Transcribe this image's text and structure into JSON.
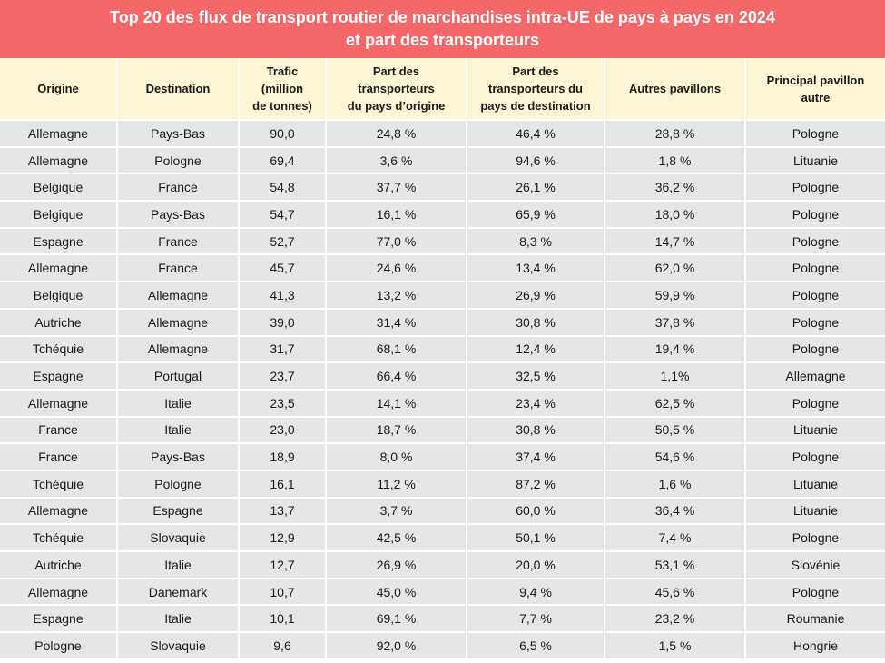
{
  "title": {
    "line1": "Top 20 des flux de transport routier de marchandises intra-UE de pays à pays en 2024",
    "line2": "et part des transporteurs"
  },
  "headers": {
    "origine": "Origine",
    "destination": "Destination",
    "trafic_l1": "Trafic",
    "trafic_l2": "(million",
    "trafic_l3": "de tonnes)",
    "part_origine_l1": "Part des",
    "part_origine_l2": "transporteurs",
    "part_origine_l3": "du pays d’origine",
    "part_dest_l1": "Part des",
    "part_dest_l2": "transporteurs du",
    "part_dest_l3": "pays de destination",
    "autres": "Autres pavillons",
    "principal_l1": "Principal pavillon",
    "principal_l2": "autre"
  },
  "rows": [
    {
      "origine": "Allemagne",
      "destination": "Pays-Bas",
      "trafic": "90,0",
      "part_origine": "24,8 %",
      "part_dest": "46,4 %",
      "autres": "28,8 %",
      "principal": "Pologne"
    },
    {
      "origine": "Allemagne",
      "destination": "Pologne",
      "trafic": "69,4",
      "part_origine": "3,6 %",
      "part_dest": "94,6 %",
      "autres": "1,8 %",
      "principal": "Lituanie"
    },
    {
      "origine": "Belgique",
      "destination": "France",
      "trafic": "54,8",
      "part_origine": "37,7 %",
      "part_dest": "26,1 %",
      "autres": "36,2 %",
      "principal": "Pologne"
    },
    {
      "origine": "Belgique",
      "destination": "Pays-Bas",
      "trafic": "54,7",
      "part_origine": "16,1 %",
      "part_dest": "65,9 %",
      "autres": "18,0 %",
      "principal": "Pologne"
    },
    {
      "origine": "Espagne",
      "destination": "France",
      "trafic": "52,7",
      "part_origine": "77,0 %",
      "part_dest": "8,3 %",
      "autres": "14,7 %",
      "principal": "Pologne"
    },
    {
      "origine": "Allemagne",
      "destination": "France",
      "trafic": "45,7",
      "part_origine": "24,6 %",
      "part_dest": "13,4 %",
      "autres": "62,0 %",
      "principal": "Pologne"
    },
    {
      "origine": "Belgique",
      "destination": "Allemagne",
      "trafic": "41,3",
      "part_origine": "13,2 %",
      "part_dest": "26,9 %",
      "autres": "59,9 %",
      "principal": "Pologne"
    },
    {
      "origine": "Autriche",
      "destination": "Allemagne",
      "trafic": "39,0",
      "part_origine": "31,4 %",
      "part_dest": "30,8 %",
      "autres": "37,8 %",
      "principal": "Pologne"
    },
    {
      "origine": "Tchéquie",
      "destination": "Allemagne",
      "trafic": "31,7",
      "part_origine": "68,1 %",
      "part_dest": "12,4 %",
      "autres": "19,4 %",
      "principal": "Pologne"
    },
    {
      "origine": "Espagne",
      "destination": "Portugal",
      "trafic": "23,7",
      "part_origine": "66,4 %",
      "part_dest": "32,5 %",
      "autres": "1,1%",
      "principal": "Allemagne"
    },
    {
      "origine": "Allemagne",
      "destination": "Italie",
      "trafic": "23,5",
      "part_origine": "14,1 %",
      "part_dest": "23,4 %",
      "autres": "62,5 %",
      "principal": "Pologne"
    },
    {
      "origine": "France",
      "destination": "Italie",
      "trafic": "23,0",
      "part_origine": "18,7 %",
      "part_dest": "30,8 %",
      "autres": "50,5 %",
      "principal": "Lituanie"
    },
    {
      "origine": "France",
      "destination": "Pays-Bas",
      "trafic": "18,9",
      "part_origine": "8,0 %",
      "part_dest": "37,4 %",
      "autres": "54,6 %",
      "principal": "Pologne"
    },
    {
      "origine": "Tchéquie",
      "destination": "Pologne",
      "trafic": "16,1",
      "part_origine": "11,2 %",
      "part_dest": "87,2 %",
      "autres": "1,6 %",
      "principal": "Lituanie"
    },
    {
      "origine": "Allemagne",
      "destination": "Espagne",
      "trafic": "13,7",
      "part_origine": "3,7 %",
      "part_dest": "60,0 %",
      "autres": "36,4 %",
      "principal": "Lituanie"
    },
    {
      "origine": "Tchéquie",
      "destination": "Slovaquie",
      "trafic": "12,9",
      "part_origine": "42,5 %",
      "part_dest": "50,1 %",
      "autres": "7,4 %",
      "principal": "Pologne"
    },
    {
      "origine": "Autriche",
      "destination": "Italie",
      "trafic": "12,7",
      "part_origine": "26,9 %",
      "part_dest": "20,0 %",
      "autres": "53,1 %",
      "principal": "Slovénie"
    },
    {
      "origine": "Allemagne",
      "destination": "Danemark",
      "trafic": "10,7",
      "part_origine": "45,0 %",
      "part_dest": "9,4 %",
      "autres": "45,6 %",
      "principal": "Pologne"
    },
    {
      "origine": "Espagne",
      "destination": "Italie",
      "trafic": "10,1",
      "part_origine": "69,1 %",
      "part_dest": "7,7 %",
      "autres": "23,2 %",
      "principal": "Roumanie"
    },
    {
      "origine": "Pologne",
      "destination": "Slovaquie",
      "trafic": "9,6",
      "part_origine": "92,0 %",
      "part_dest": "6,5 %",
      "autres": "1,5 %",
      "principal": "Hongrie"
    }
  ],
  "colors": {
    "title_bg": "#f4686a",
    "header_bg": "#fdf5d4",
    "cell_bg": "#e6e6e6"
  }
}
